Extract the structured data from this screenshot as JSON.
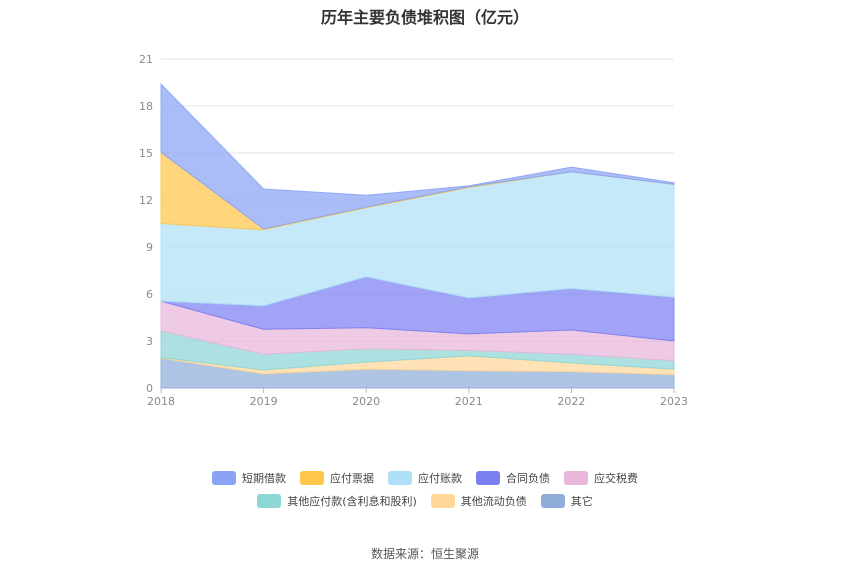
{
  "source": "数据来源：恒生聚源",
  "chart_data": {
    "type": "area",
    "stacked": true,
    "title": "历年主要负债堆积图（亿元）",
    "x": [
      "2018",
      "2019",
      "2020",
      "2021",
      "2022",
      "2023"
    ],
    "ylim": [
      0,
      21
    ],
    "yticks": [
      "0",
      "3",
      "6",
      "9",
      "12",
      "15",
      "18",
      "21"
    ],
    "grid": true,
    "legend_position": "bottom",
    "series": [
      {
        "name": "其它",
        "color": "#8fadd9",
        "values": [
          1.9,
          0.9,
          1.2,
          1.1,
          1.05,
          0.85
        ]
      },
      {
        "name": "其他流动负债",
        "color": "#ffd799",
        "values": [
          0.05,
          0.25,
          0.45,
          0.95,
          0.55,
          0.35
        ]
      },
      {
        "name": "其他应付款(含利息和股利)",
        "color": "#8dd6d6",
        "values": [
          1.7,
          1.0,
          0.85,
          0.35,
          0.55,
          0.55
        ]
      },
      {
        "name": "应交税费",
        "color": "#e8b6da",
        "values": [
          1.9,
          1.6,
          1.35,
          1.05,
          1.55,
          1.25
        ]
      },
      {
        "name": "合同负债",
        "color": "#7b7ff2",
        "values": [
          0.0,
          1.5,
          3.25,
          2.3,
          2.65,
          2.8
        ]
      },
      {
        "name": "应付账款",
        "color": "#aee0f7",
        "values": [
          4.95,
          4.85,
          4.4,
          7.05,
          7.45,
          7.2
        ]
      },
      {
        "name": "应付票据",
        "color": "#ffc64a",
        "values": [
          4.55,
          0.05,
          0.05,
          0.05,
          0.0,
          0.0
        ]
      },
      {
        "name": "短期借款",
        "color": "#8aa3f5",
        "values": [
          4.35,
          2.55,
          0.75,
          0.05,
          0.3,
          0.1
        ]
      }
    ],
    "legend_order": [
      "短期借款",
      "应付票据",
      "应付账款",
      "合同负债",
      "应交税费",
      "其他应付款(含利息和股利)",
      "其他流动负债",
      "其它"
    ]
  }
}
